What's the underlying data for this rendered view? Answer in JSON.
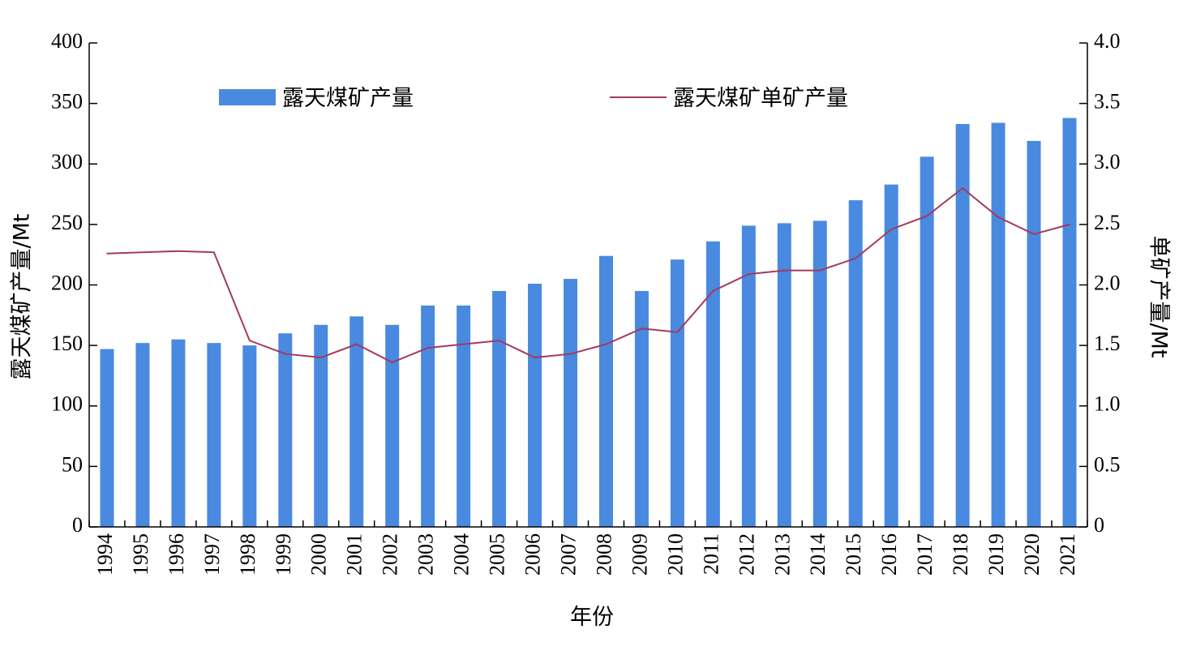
{
  "chart_data": {
    "type": "bar",
    "categories": [
      "1994",
      "1995",
      "1996",
      "1997",
      "1998",
      "1999",
      "2000",
      "2001",
      "2002",
      "2003",
      "2004",
      "2005",
      "2006",
      "2007",
      "2008",
      "2009",
      "2010",
      "2011",
      "2012",
      "2013",
      "2014",
      "2015",
      "2016",
      "2017",
      "2018",
      "2019",
      "2020",
      "2021"
    ],
    "series": [
      {
        "name": "露天煤矿产量",
        "type": "bar",
        "axis": "left",
        "color": "#4a89e0",
        "values": [
          147,
          152,
          155,
          152,
          150,
          160,
          167,
          174,
          167,
          183,
          183,
          195,
          201,
          205,
          224,
          195,
          221,
          236,
          249,
          251,
          253,
          270,
          283,
          306,
          333,
          334,
          319,
          338
        ]
      },
      {
        "name": "露天煤矿单矿产量",
        "type": "line",
        "axis": "right",
        "color": "#a33a5e",
        "values": [
          2.26,
          2.27,
          2.28,
          2.27,
          1.54,
          1.43,
          1.4,
          1.51,
          1.36,
          1.48,
          1.51,
          1.54,
          1.4,
          1.43,
          1.51,
          1.64,
          1.61,
          1.95,
          2.09,
          2.12,
          2.12,
          2.22,
          2.46,
          2.57,
          2.8,
          2.56,
          2.42,
          2.5
        ]
      }
    ],
    "xlabel": "年份",
    "ylabel": "露天煤矿产量/Mt",
    "y2label": "单矿产量/Mt",
    "ylim": [
      0,
      400
    ],
    "y2lim": [
      0,
      4.0
    ],
    "yticks": [
      "0",
      "50",
      "100",
      "150",
      "200",
      "250",
      "300",
      "350",
      "400"
    ],
    "y2ticks": [
      "0",
      "0.5",
      "1.0",
      "1.5",
      "2.0",
      "2.5",
      "3.0",
      "3.5",
      "4.0"
    ],
    "grid": false,
    "legend": "top"
  }
}
